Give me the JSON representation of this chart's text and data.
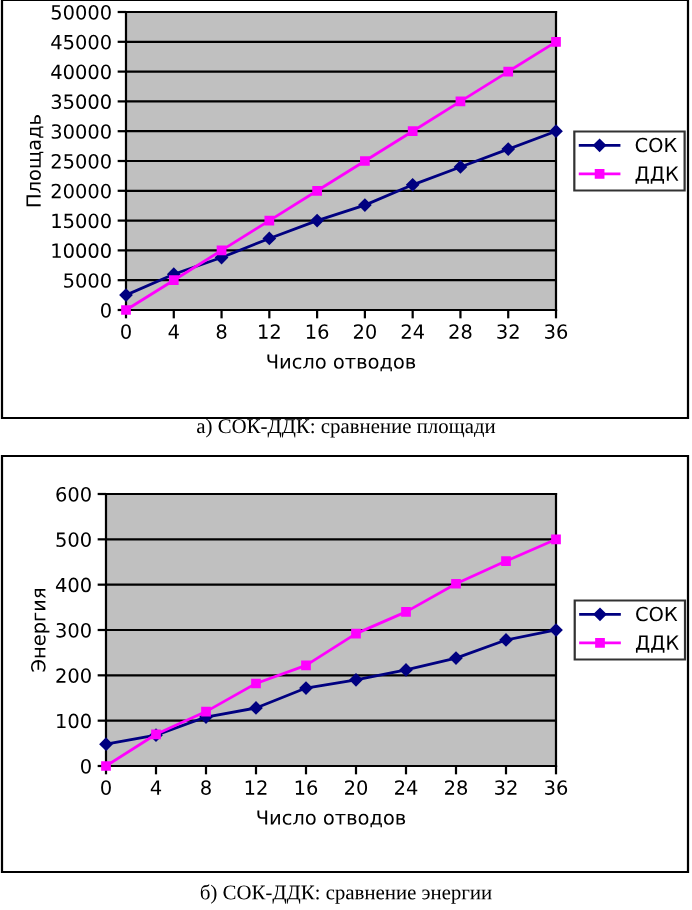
{
  "chart_data": [
    {
      "type": "line",
      "xlabel": "Число отводов",
      "ylabel": "Площадь",
      "x": [
        0,
        4,
        8,
        12,
        16,
        20,
        24,
        28,
        32,
        36
      ],
      "series": [
        {
          "name": "СОК",
          "color": "#000080",
          "marker": "diamond",
          "values": [
            2500,
            6000,
            8800,
            12000,
            15000,
            17600,
            21000,
            24000,
            27000,
            30000
          ]
        },
        {
          "name": "ДДК",
          "color": "#ff00ff",
          "marker": "square",
          "values": [
            0,
            5000,
            10000,
            15000,
            20000,
            25000,
            30000,
            35000,
            40000,
            45000
          ]
        }
      ],
      "xlim": [
        0,
        36
      ],
      "xticks": [
        0,
        4,
        8,
        12,
        16,
        20,
        24,
        28,
        32,
        36
      ],
      "ylim": [
        0,
        50000
      ],
      "yticks": [
        0,
        5000,
        10000,
        15000,
        20000,
        25000,
        30000,
        35000,
        40000,
        45000,
        50000
      ],
      "grid": "y",
      "legend": "right",
      "line_style": "solid",
      "annotations": [
        "а) СОК-ДДК: сравнение площади"
      ]
    },
    {
      "type": "line",
      "xlabel": "Число отводов",
      "ylabel": "Энергия",
      "x": [
        0,
        4,
        8,
        12,
        16,
        20,
        24,
        28,
        32,
        36
      ],
      "series": [
        {
          "name": "СОК",
          "color": "#000080",
          "marker": "diamond",
          "values": [
            48,
            68,
            108,
            128,
            172,
            190,
            212,
            238,
            278,
            300
          ]
        },
        {
          "name": "ДДК",
          "color": "#ff00ff",
          "marker": "square",
          "values": [
            0,
            70,
            120,
            182,
            222,
            292,
            340,
            402,
            452,
            500
          ]
        }
      ],
      "xlim": [
        0,
        36
      ],
      "xticks": [
        0,
        4,
        8,
        12,
        16,
        20,
        24,
        28,
        32,
        36
      ],
      "ylim": [
        0,
        600
      ],
      "yticks": [
        0,
        100,
        200,
        300,
        400,
        500,
        600
      ],
      "grid": "y",
      "legend": "right",
      "line_style": "solid",
      "annotations": [
        "б) СОК-ДДК: сравнение энергии"
      ]
    }
  ]
}
